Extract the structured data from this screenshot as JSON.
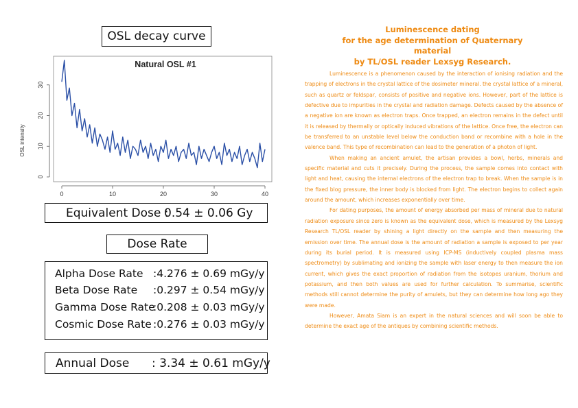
{
  "left": {
    "osl_title": "OSL decay curve",
    "equivalent_dose": {
      "label": "Equivalent Dose :",
      "value": "0.54 ± 0.06 Gy"
    },
    "dose_rate_title": "Dose Rate",
    "rates": [
      {
        "name": "Alpha Dose Rate",
        "value": ":4.276 ± 0.69  mGy/y"
      },
      {
        "name": "Beta Dose Rate",
        "value": ":0.297 ± 0.54  mGy/y"
      },
      {
        "name": "Gamma Dose Rate",
        "value": ":0.208 ± 0.03  mGy/y"
      },
      {
        "name": "Cosmic Dose Rate",
        "value": ":0.276 ± 0.03  mGy/y"
      }
    ],
    "annual_dose": {
      "label": "Annual Dose",
      "value": ": 3.34 ± 0.61 mGy/y"
    }
  },
  "chart_data": {
    "type": "line",
    "title": "Natural OSL #1",
    "xlabel": "",
    "ylabel": "OSL intensity",
    "xlim": [
      0,
      40
    ],
    "ylim": [
      0,
      38
    ],
    "xticks": [
      "0",
      "10",
      "20",
      "30",
      "40"
    ],
    "yticks": [
      "0",
      "10",
      "20",
      "30"
    ],
    "grid": false,
    "color": "#2a4fa6",
    "x": [
      0,
      0.5,
      1,
      1.5,
      2,
      2.5,
      3,
      3.5,
      4,
      4.5,
      5,
      5.5,
      6,
      6.5,
      7,
      7.5,
      8,
      8.5,
      9,
      9.5,
      10,
      10.5,
      11,
      11.5,
      12,
      12.5,
      13,
      13.5,
      14,
      14.5,
      15,
      15.5,
      16,
      16.5,
      17,
      17.5,
      18,
      18.5,
      19,
      19.5,
      20,
      20.5,
      21,
      21.5,
      22,
      22.5,
      23,
      23.5,
      24,
      24.5,
      25,
      25.5,
      26,
      26.5,
      27,
      27.5,
      28,
      28.5,
      29,
      29.5,
      30,
      30.5,
      31,
      31.5,
      32,
      32.5,
      33,
      33.5,
      34,
      34.5,
      35,
      35.5,
      36,
      36.5,
      37,
      37.5,
      38,
      38.5,
      39,
      39.5,
      40
    ],
    "y": [
      31,
      38,
      25,
      29,
      20,
      24,
      16,
      22,
      15,
      19,
      13,
      17,
      11,
      16,
      10,
      14,
      12,
      9,
      13,
      8,
      15,
      9,
      11,
      7,
      13,
      8,
      12,
      6,
      10,
      9,
      7,
      12,
      8,
      10,
      6,
      11,
      7,
      9,
      5,
      10,
      8,
      12,
      6,
      9,
      7,
      10,
      5,
      8,
      9,
      6,
      11,
      7,
      8,
      4,
      10,
      6,
      9,
      7,
      5,
      8,
      10,
      6,
      8,
      4,
      11,
      7,
      9,
      5,
      8,
      6,
      10,
      4,
      7,
      9,
      5,
      8,
      6,
      3,
      11,
      5,
      9
    ]
  },
  "right": {
    "title_lines": [
      "Luminescence dating",
      "for the age determination of Quaternary material",
      "by TL/OSL reader Lexsyg Research."
    ],
    "paragraphs": [
      "Luminescence is a phenomenon caused by the interaction of ionising radiation and the trapping of electrons in the crystal lattice of the dosimeter mineral. the crystal lattice of a mineral, such as quartz or feldspar, consists of positive and negative ions. However, part of the lattice is defective due to impurities in the crystal and radiation damage. Defects caused by the absence of a negative ion are known as electron traps. Once trapped, an electron remains in the defect until it is released by thermally or optically induced vibrations of the lattice. Once free, the electron can be transferred to an unstable level below the conduction band or recombine with a hole in the valence band. This type of recombination can lead to the generation of a photon of light.",
      "When making an ancient amulet, the artisan provides a bowl, herbs, minerals and specific material and cuts it precisely. During the process, the sample comes into contact with light and heat, causing the internal electrons of the electron trap to break. When the sample is in the fixed blog pressure, the inner body is blocked from light. The electron begins to collect again around the amount, which increases exponentially over time.",
      "For dating purposes, the amount of energy absorbed per mass of mineral due to natural radiation exposure since zero is known as the equivalent dose, which is measured by the Lexsyg Research TL/OSL reader by shining a light directly on the sample and then measuring the emission over time. The annual dose is the amount of radiation a sample is exposed to per year during its burial period. It is measured using ICP-MS (inductively coupled plasma mass spectrometry) by sublimating and ionizing the sample with laser energy to then measure the ion current, which gives the exact proportion of radiation from the isotopes uranium, thorium and potassium, and then both values are used for further calculation. To summarise, scientific methods still cannot determine the purity of amulets, but they can determine how long ago they were made.",
      "However, Amata Siam is an expert in the natural sciences and will soon be able to determine the exact age of the antiques by combining scientific methods."
    ]
  }
}
